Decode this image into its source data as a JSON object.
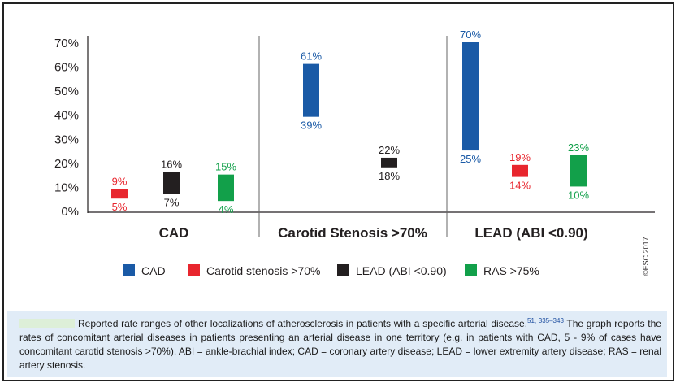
{
  "chart_data": {
    "type": "bar",
    "title": "",
    "y_ticks": [
      "70%",
      "60%",
      "50%",
      "40%",
      "30%",
      "20%",
      "10%",
      "0%"
    ],
    "ylim": [
      0,
      70
    ],
    "groups": [
      {
        "label": "CAD",
        "bars": [
          {
            "series": "Carotid stenosis >70%",
            "low": 5,
            "high": 9,
            "low_label": "5%",
            "high_label": "9%"
          },
          {
            "series": "LEAD (ABI <0.90)",
            "low": 7,
            "high": 16,
            "low_label": "7%",
            "high_label": "16%"
          },
          {
            "series": "RAS >75%",
            "low": 4,
            "high": 15,
            "low_label": "4%",
            "high_label": "15%"
          }
        ]
      },
      {
        "label": "Carotid Stenosis >70%",
        "bars": [
          {
            "series": "CAD",
            "low": 39,
            "high": 61,
            "low_label": "39%",
            "high_label": "61%"
          },
          {
            "series": "LEAD (ABI <0.90)",
            "low": 18,
            "high": 22,
            "low_label": "18%",
            "high_label": "22%"
          }
        ]
      },
      {
        "label": "LEAD (ABI <0.90)",
        "bars": [
          {
            "series": "CAD",
            "low": 25,
            "high": 70,
            "low_label": "25%",
            "high_label": "70%"
          },
          {
            "series": "Carotid stenosis >70%",
            "low": 14,
            "high": 19,
            "low_label": "14%",
            "high_label": "19%"
          },
          {
            "series": "RAS >75%",
            "low": 10,
            "high": 23,
            "low_label": "10%",
            "high_label": "23%"
          }
        ]
      }
    ],
    "legend": [
      {
        "name": "CAD",
        "color": "#1a5aa6"
      },
      {
        "name": "Carotid stenosis >70%",
        "color": "#e8262e"
      },
      {
        "name": "LEAD (ABI <0.90)",
        "color": "#231f20"
      },
      {
        "name": "RAS >75%",
        "color": "#12a04a"
      }
    ],
    "legend_placement": "bottom",
    "grid": false,
    "copyright": "©ESC 2017"
  },
  "caption": {
    "text_before": "Reported rate ranges of other localizations of atherosclerosis in patients with a specific arterial disease.",
    "refs": "51, 335–343",
    "text_after": " The graph reports the rates of concomitant arterial diseases in patients presenting an arterial disease in one territory (e.g. in patients with CAD, 5 - 9% of cases have concomitant carotid stenosis >70%). ABI = ankle-brachial index; CAD = coronary artery disease; LEAD = lower extremity artery disease; RAS = renal artery stenosis."
  }
}
